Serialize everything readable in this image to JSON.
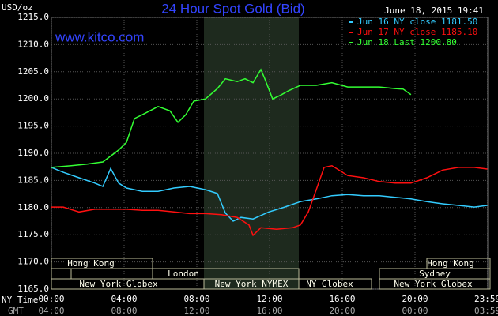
{
  "chart_data": {
    "type": "line",
    "title": "24 Hour Spot Gold (Bid)",
    "timestamp": "June 18, 2015 19:41",
    "source": "www.kitco.com",
    "y_label": "USD/oz",
    "x_label": "NY Time",
    "x2_label": "GMT",
    "xlim": [
      0,
      24
    ],
    "ylim": [
      1165,
      1215
    ],
    "grid": true,
    "legend": "top-right",
    "xticks": [
      {
        "value": 0,
        "label": "00:00"
      },
      {
        "value": 4,
        "label": "04:00"
      },
      {
        "value": 8,
        "label": "08:00"
      },
      {
        "value": 12,
        "label": "12:00"
      },
      {
        "value": 16,
        "label": "16:00"
      },
      {
        "value": 20,
        "label": "20:00"
      },
      {
        "value": 23.98,
        "label": "23:59"
      }
    ],
    "x2tick_labels": [
      "04:00",
      "08:00",
      "12:00",
      "16:00",
      "20:00",
      "00:00",
      "03:59"
    ],
    "yticks": [
      {
        "value": 1165,
        "label": "1165.0"
      },
      {
        "value": 1170,
        "label": "1170.0"
      },
      {
        "value": 1175,
        "label": "1175.0"
      },
      {
        "value": 1180,
        "label": "1180.0"
      },
      {
        "value": 1185,
        "label": "1185.0"
      },
      {
        "value": 1190,
        "label": "1190.0"
      },
      {
        "value": 1195,
        "label": "1195.0"
      },
      {
        "value": 1200,
        "label": "1200.0"
      },
      {
        "value": 1205,
        "label": "1205.0"
      },
      {
        "value": 1210,
        "label": "1210.0"
      },
      {
        "value": 1215,
        "label": "1215.0"
      }
    ],
    "sessions": [
      "Hong Kong",
      "London",
      "New York Globex",
      "New York NYMEX",
      "NY Globex",
      "Sydney",
      "Hong Kong",
      "New York Globex"
    ],
    "series": [
      {
        "name": "Jun 16 NY close 1181.50",
        "color": "#33ccff",
        "x": [
          0,
          0.65,
          1.52,
          2.39,
          2.83,
          3.26,
          3.7,
          4.13,
          5.0,
          5.87,
          6.74,
          7.61,
          8.48,
          9.13,
          9.57,
          10.0,
          10.43,
          11.09,
          11.96,
          12.83,
          13.7,
          14.57,
          15.43,
          16.3,
          17.17,
          18.04,
          18.91,
          19.78,
          20.65,
          21.52,
          22.39,
          23.26,
          23.98
        ],
        "values": [
          1187.4,
          1186.5,
          1185.5,
          1184.5,
          1183.9,
          1187.2,
          1184.5,
          1183.6,
          1183.0,
          1183.0,
          1183.6,
          1183.9,
          1183.3,
          1182.6,
          1179.0,
          1177.5,
          1178.2,
          1177.9,
          1179.2,
          1180.1,
          1181.1,
          1181.6,
          1182.2,
          1182.4,
          1182.2,
          1182.2,
          1181.9,
          1181.6,
          1181.1,
          1180.7,
          1180.4,
          1180.1,
          1180.4
        ]
      },
      {
        "name": "Jun 17 NY close 1185.10",
        "color": "#ff1010",
        "x": [
          0,
          0.65,
          1.52,
          2.39,
          3.26,
          4.13,
          5.0,
          5.87,
          6.74,
          7.61,
          8.48,
          9.35,
          10.22,
          10.87,
          11.09,
          11.52,
          12.39,
          13.26,
          13.7,
          14.13,
          14.57,
          15.0,
          15.43,
          16.3,
          17.17,
          18.04,
          18.91,
          19.78,
          20.65,
          21.52,
          22.39,
          23.26,
          23.98
        ],
        "values": [
          1180.1,
          1180.1,
          1179.2,
          1179.7,
          1179.7,
          1179.7,
          1179.5,
          1179.5,
          1179.2,
          1178.9,
          1178.9,
          1178.7,
          1178.2,
          1176.8,
          1174.9,
          1176.3,
          1176.0,
          1176.3,
          1176.8,
          1179.2,
          1183.3,
          1187.4,
          1187.7,
          1185.9,
          1185.5,
          1184.8,
          1184.5,
          1184.5,
          1185.5,
          1186.9,
          1187.4,
          1187.4,
          1187.1
        ]
      },
      {
        "name": "Jun 18 Last 1200.80",
        "color": "#33ff33",
        "x": [
          0,
          1.09,
          1.96,
          2.83,
          3.7,
          4.13,
          4.57,
          5.0,
          5.87,
          6.52,
          6.96,
          7.39,
          7.83,
          8.48,
          9.13,
          9.57,
          10.22,
          10.65,
          11.09,
          11.52,
          11.74,
          12.17,
          12.61,
          13.04,
          13.7,
          14.57,
          15.43,
          16.3,
          17.17,
          18.04,
          18.91,
          19.35,
          19.78
        ],
        "values": [
          1187.4,
          1187.7,
          1188.0,
          1188.4,
          1190.6,
          1192.0,
          1196.4,
          1197.1,
          1198.6,
          1197.8,
          1195.7,
          1197.1,
          1199.6,
          1200.0,
          1201.9,
          1203.7,
          1203.2,
          1203.7,
          1203.0,
          1205.4,
          1203.7,
          1200.0,
          1200.7,
          1201.5,
          1202.5,
          1202.5,
          1203.0,
          1202.2,
          1202.2,
          1202.2,
          1201.9,
          1201.8,
          1200.8
        ]
      }
    ]
  }
}
